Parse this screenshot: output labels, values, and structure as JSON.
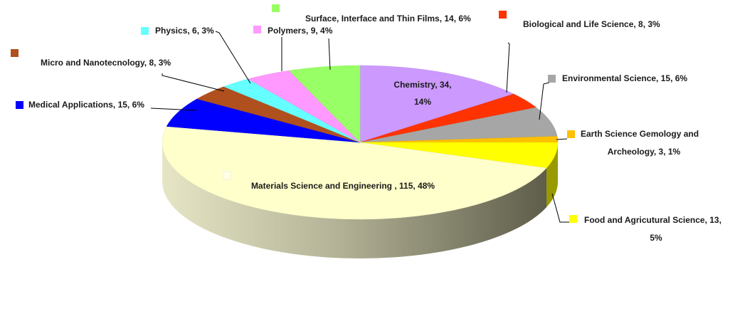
{
  "chart_data": {
    "type": "pie",
    "style": "3d",
    "title": "",
    "slices": [
      {
        "name": "Chemistry",
        "value": 34,
        "percent": "14%",
        "color": "#CC99FF",
        "label_lines": [
          "Chemistry, 34,",
          "14%"
        ]
      },
      {
        "name": "Biological and Life Science",
        "value": 8,
        "percent": "3%",
        "color": "#FF3300",
        "label_lines": [
          "Biological and Life Science, 8, 3%"
        ]
      },
      {
        "name": "Environmental Science",
        "value": 15,
        "percent": "6%",
        "color": "#A6A6A6",
        "label_lines": [
          "Environmental Science, 15, 6%"
        ]
      },
      {
        "name": "Earth Science Gemology and Archeology",
        "value": 3,
        "percent": "1%",
        "color": "#FFC000",
        "label_lines": [
          "Earth Science Gemology and",
          "Archeology, 3, 1%"
        ]
      },
      {
        "name": "Food and Agricutural Science",
        "value": 13,
        "percent": "5%",
        "color": "#FFFF00",
        "label_lines": [
          "Food and Agricutural Science, 13,",
          "5%"
        ]
      },
      {
        "name": "Materials Science and Engineering ",
        "value": 115,
        "percent": "48%",
        "color": "#FFFFCC",
        "label_lines": [
          "Materials Science and Engineering , 115, 48%"
        ]
      },
      {
        "name": "Medical Applications",
        "value": 15,
        "percent": "6%",
        "color": "#0000FF",
        "label_lines": [
          "Medical Applications, 15, 6%"
        ]
      },
      {
        "name": "Micro and Nanotecnology",
        "value": 8,
        "percent": "3%",
        "color": "#B0501E",
        "label_lines": [
          "Micro and Nanotecnology, 8, 3%"
        ]
      },
      {
        "name": "Physics",
        "value": 6,
        "percent": "3%",
        "color": "#66FFFF",
        "label_lines": [
          "Physics, 6, 3%"
        ]
      },
      {
        "name": "Polymers",
        "value": 9,
        "percent": "4%",
        "color": "#FF99FF",
        "label_lines": [
          "Polymers, 9, 4%"
        ]
      },
      {
        "name": "Surface, Interface and Thin Films",
        "value": 14,
        "percent": "6%",
        "color": "#99FF66",
        "label_lines": [
          "Surface, Interface and Thin Films, 14, 6%"
        ]
      }
    ]
  }
}
